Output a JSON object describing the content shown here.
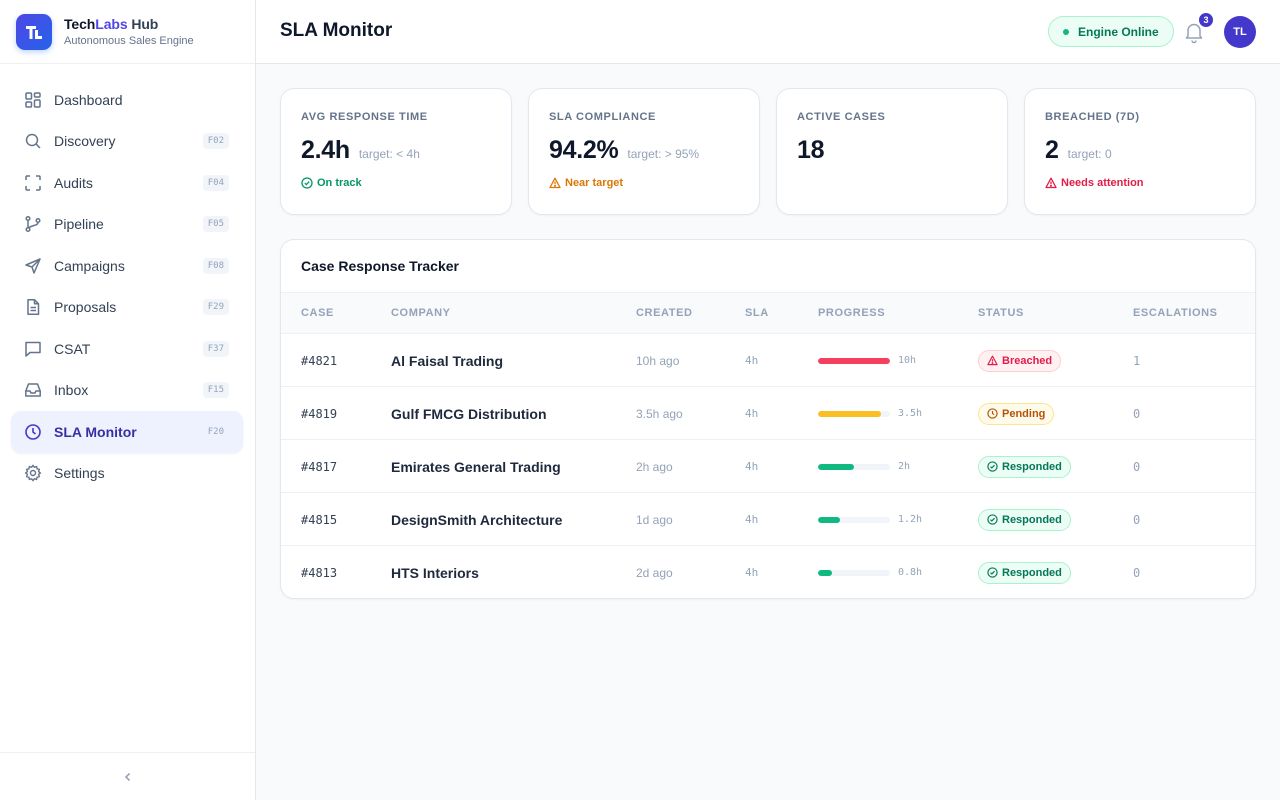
{
  "brand": {
    "name_part1": "Tech",
    "name_part2": "Labs",
    "name_part3": " Hub",
    "subtitle": "Autonomous Sales Engine",
    "logo_letters": "TL"
  },
  "sidebar": {
    "items": [
      {
        "label": "Dashboard",
        "key": "",
        "icon": "grid-icon"
      },
      {
        "label": "Discovery",
        "key": "F02",
        "icon": "search-icon"
      },
      {
        "label": "Audits",
        "key": "F04",
        "icon": "scan-icon"
      },
      {
        "label": "Pipeline",
        "key": "F05",
        "icon": "branch-icon"
      },
      {
        "label": "Campaigns",
        "key": "F08",
        "icon": "send-icon"
      },
      {
        "label": "Proposals",
        "key": "F29",
        "icon": "file-icon"
      },
      {
        "label": "CSAT",
        "key": "F37",
        "icon": "chat-icon"
      },
      {
        "label": "Inbox",
        "key": "F15",
        "icon": "inbox-icon"
      },
      {
        "label": "SLA Monitor",
        "key": "F20",
        "icon": "clock-icon"
      },
      {
        "label": "Settings",
        "key": "",
        "icon": "gear-icon"
      }
    ]
  },
  "header": {
    "title": "SLA Monitor",
    "engine_status": "Engine Online",
    "notification_count": "3",
    "avatar_initials": "TL"
  },
  "stats": [
    {
      "label": "Avg Response Time",
      "value": "2.4h",
      "target": "target: < 4h",
      "status": "On track"
    },
    {
      "label": "SLA Compliance",
      "value": "94.2%",
      "target": "target: > 95%",
      "status": "Near target"
    },
    {
      "label": "Active Cases",
      "value": "18",
      "target": "",
      "status": ""
    },
    {
      "label": "Breached (7d)",
      "value": "2",
      "target": "target: 0",
      "status": "Needs attention"
    }
  ],
  "tracker": {
    "title": "Case Response Tracker",
    "columns": {
      "case": "Case",
      "company": "Company",
      "created": "Created",
      "sla": "SLA",
      "progress": "Progress",
      "status": "Status",
      "escalations": "Escalations"
    },
    "rows": [
      {
        "case": "#4821",
        "company": "Al Faisal Trading",
        "created": "10h ago",
        "sla": "4h",
        "progress_label": "10h",
        "progress_fraction": 1.0,
        "bar_color": "#f43f5e",
        "status": "Breached",
        "escalations": "1"
      },
      {
        "case": "#4819",
        "company": "Gulf FMCG Distribution",
        "created": "3.5h ago",
        "sla": "4h",
        "progress_label": "3.5h",
        "progress_fraction": 0.875,
        "bar_color": "#fbbf24",
        "status": "Pending",
        "escalations": "0"
      },
      {
        "case": "#4817",
        "company": "Emirates General Trading",
        "created": "2h ago",
        "sla": "4h",
        "progress_label": "2h",
        "progress_fraction": 0.5,
        "bar_color": "#10b981",
        "status": "Responded",
        "escalations": "0"
      },
      {
        "case": "#4815",
        "company": "DesignSmith Architecture",
        "created": "1d ago",
        "sla": "4h",
        "progress_label": "1.2h",
        "progress_fraction": 0.3,
        "bar_color": "#10b981",
        "status": "Responded",
        "escalations": "0"
      },
      {
        "case": "#4813",
        "company": "HTS Interiors",
        "created": "2d ago",
        "sla": "4h",
        "progress_label": "0.8h",
        "progress_fraction": 0.2,
        "bar_color": "#10b981",
        "status": "Responded",
        "escalations": "0"
      }
    ]
  }
}
